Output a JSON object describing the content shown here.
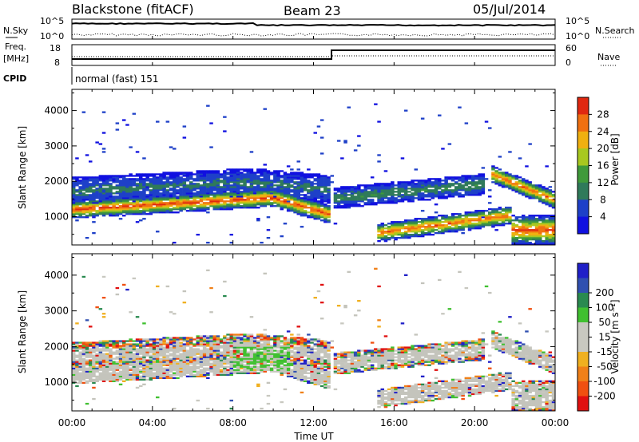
{
  "header": {
    "radar": "Blackstone (fitACF)",
    "beam": "Beam 23",
    "date": "05/Jul/2014"
  },
  "noise_panel": {
    "left_label": "N.Sky",
    "right_label": "N.Search",
    "left_ticks": [
      "10^5",
      "10^0"
    ],
    "right_ticks": [
      "10^5",
      "10^0"
    ]
  },
  "freq_panel": {
    "left_label_1": "Freq.",
    "left_label_2": "[MHz]",
    "right_label": "Nave",
    "left_ticks": [
      "18",
      "8"
    ],
    "right_ticks": [
      "60",
      "0"
    ]
  },
  "cpid": {
    "label": "CPID",
    "value": "normal (fast) 151"
  },
  "colors": {
    "power": [
      "#1010e0",
      "#1e40c8",
      "#2f7a5a",
      "#3f9a3a",
      "#a8c820",
      "#f0b010",
      "#f07010",
      "#e02810"
    ],
    "velocity": [
      "#e01010",
      "#f05010",
      "#f08018",
      "#f0b020",
      "#c8c8c0",
      "#c8c8c0",
      "#40c030",
      "#2a8a50",
      "#3050b0",
      "#2020c8"
    ],
    "ground_scatter": "#c4c4bc"
  },
  "chart_data": [
    {
      "type": "heatmap",
      "name": "power",
      "ylabel": "Slant Range [km]",
      "yticks": [
        "1000",
        "2000",
        "3000",
        "4000"
      ],
      "ylim": [
        200,
        4600
      ],
      "xlim": [
        0,
        24
      ],
      "colorbar": {
        "label": "Power [dB]",
        "ticks": [
          "4",
          "8",
          "12",
          "16",
          "20",
          "24",
          "28"
        ],
        "range": [
          0,
          32
        ]
      },
      "bands": [
        {
          "x": [
            0,
            10,
            12.9
          ],
          "center_km": [
            1180,
            1520,
            1030
          ],
          "width_km": 260,
          "peak_db": 28
        },
        {
          "x": [
            0,
            9,
            12.9
          ],
          "center_km": [
            1700,
            1950,
            1750
          ],
          "width_km": 400,
          "peak_db": 8
        },
        {
          "x": [
            13,
            20.5
          ],
          "center_km": [
            1500,
            1900
          ],
          "width_km": 300,
          "peak_db": 10
        },
        {
          "x": [
            15.2,
            21.8
          ],
          "center_km": [
            520,
            1020
          ],
          "width_km": 260,
          "peak_db": 26
        },
        {
          "x": [
            20.8,
            24
          ],
          "center_km": [
            2200,
            1450
          ],
          "width_km": 240,
          "peak_db": 26
        },
        {
          "x": [
            21.8,
            24
          ],
          "center_km": [
            600,
            600
          ],
          "width_km": 420,
          "peak_db": 28
        }
      ]
    },
    {
      "type": "heatmap",
      "name": "velocity",
      "ylabel": "Slant Range [km]",
      "yticks": [
        "1000",
        "2000",
        "3000",
        "4000"
      ],
      "ylim": [
        200,
        4600
      ],
      "xlim": [
        0,
        24
      ],
      "colorbar": {
        "label": "Velocity [m s⁻¹]",
        "ticks": [
          "-200",
          "-100",
          "-50",
          "-15",
          "15",
          "50",
          "100",
          "200"
        ],
        "range": [
          -250,
          250
        ]
      },
      "xlabel": "Time UT",
      "xticks": [
        "00:00",
        "04:00",
        "08:00",
        "12:00",
        "16:00",
        "20:00",
        "00:00"
      ]
    }
  ]
}
